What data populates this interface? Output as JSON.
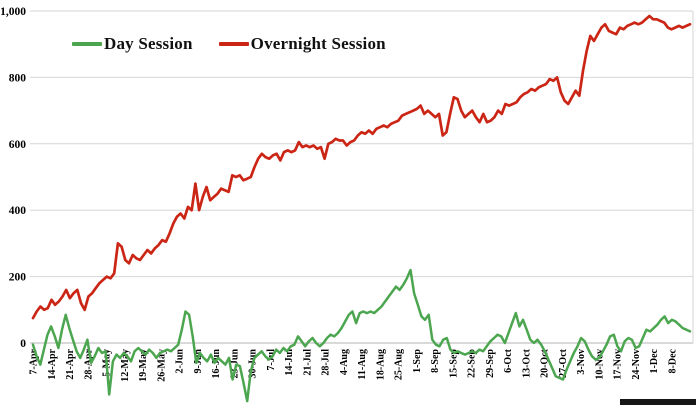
{
  "chart_data": {
    "type": "line",
    "title": "",
    "grid": true,
    "legend_position": "top-left-inside",
    "background": "#ffffff",
    "grid_color": "#d6d6d6",
    "zero_axis_color": "#b3b3b3",
    "label_color": "#000000",
    "legend": [
      {
        "label": "Day Session",
        "color": "#4ca64f"
      },
      {
        "label": "Overnight Session",
        "color": "#cb2615"
      }
    ],
    "y_axis": {
      "ticks": [
        0,
        200,
        400,
        600,
        800,
        1000
      ],
      "tick_labels": [
        "0",
        "200",
        "400",
        "600",
        "800",
        "1,000"
      ],
      "range_drawn": [
        -190,
        1000
      ]
    },
    "x_axis": {
      "tick_labels": [
        "7-Apr",
        "14-Apr",
        "21-Apr",
        "28-Apr",
        "5-May",
        "12-May",
        "19-May",
        "26-May",
        "2-Jun",
        "9-Jun",
        "16-Jun",
        "23-Jun",
        "30-Jun",
        "7-Jul",
        "14-Jul",
        "21-Jul",
        "28-Jul",
        "4-Aug",
        "11-Aug",
        "18-Aug",
        "25-Aug",
        "1-Sep",
        "8-Sep",
        "15-Sep",
        "22-Sep",
        "29-Sep",
        "6-Oct",
        "13-Oct",
        "20-Oct",
        "27-Oct",
        "3-Nov",
        "10-Nov",
        "17-Nov",
        "24-Nov",
        "1-Dec",
        "8-Dec"
      ]
    },
    "series": [
      {
        "name": "Overnight Session",
        "color": "#cb2615",
        "stroke_width": 2.7,
        "values": [
          75,
          95,
          110,
          100,
          105,
          130,
          115,
          125,
          140,
          160,
          135,
          150,
          160,
          120,
          100,
          140,
          150,
          165,
          180,
          190,
          200,
          195,
          210,
          300,
          290,
          250,
          240,
          265,
          255,
          250,
          265,
          280,
          270,
          285,
          295,
          310,
          305,
          330,
          360,
          380,
          390,
          375,
          410,
          400,
          480,
          400,
          440,
          470,
          430,
          440,
          450,
          465,
          460,
          455,
          505,
          500,
          505,
          490,
          495,
          500,
          530,
          555,
          570,
          560,
          555,
          565,
          570,
          550,
          575,
          580,
          575,
          580,
          605,
          590,
          595,
          590,
          595,
          585,
          590,
          555,
          600,
          605,
          615,
          610,
          610,
          595,
          605,
          610,
          625,
          635,
          630,
          640,
          630,
          645,
          650,
          655,
          650,
          660,
          665,
          670,
          685,
          690,
          695,
          700,
          705,
          715,
          690,
          700,
          690,
          680,
          690,
          625,
          635,
          690,
          740,
          735,
          700,
          680,
          690,
          700,
          680,
          665,
          690,
          665,
          670,
          680,
          700,
          690,
          720,
          715,
          720,
          725,
          740,
          750,
          755,
          765,
          760,
          770,
          775,
          780,
          795,
          790,
          800,
          755,
          730,
          720,
          740,
          760,
          745,
          820,
          880,
          925,
          910,
          930,
          950,
          960,
          940,
          935,
          930,
          950,
          945,
          955,
          960,
          965,
          960,
          965,
          975,
          985,
          975,
          975,
          970,
          965,
          950,
          945,
          950,
          955,
          950,
          955,
          960
        ]
      },
      {
        "name": "Day Session",
        "color": "#4ca64f",
        "stroke_width": 2.5,
        "values": [
          -5,
          -40,
          -65,
          -20,
          25,
          50,
          20,
          -15,
          40,
          85,
          45,
          10,
          -25,
          -45,
          -20,
          10,
          -60,
          -40,
          -15,
          -30,
          -25,
          -155,
          -55,
          -35,
          -45,
          -30,
          -40,
          -55,
          -25,
          -15,
          -25,
          -35,
          -20,
          -30,
          -45,
          -30,
          -25,
          -20,
          -25,
          -15,
          -5,
          40,
          95,
          85,
          20,
          -60,
          -30,
          -45,
          -55,
          -35,
          -60,
          -45,
          -55,
          -65,
          -45,
          -110,
          -65,
          -70,
          -120,
          -175,
          -85,
          -45,
          -35,
          -25,
          -40,
          -50,
          -40,
          -20,
          -30,
          -15,
          -25,
          -10,
          -5,
          20,
          5,
          -10,
          5,
          15,
          0,
          -10,
          0,
          15,
          25,
          20,
          30,
          45,
          65,
          85,
          95,
          60,
          90,
          95,
          90,
          95,
          90,
          100,
          110,
          125,
          140,
          155,
          170,
          160,
          175,
          195,
          220,
          150,
          115,
          80,
          70,
          85,
          10,
          -5,
          -10,
          10,
          15,
          -20,
          -30,
          -25,
          -30,
          -35,
          -30,
          -25,
          -30,
          -20,
          -25,
          -10,
          5,
          15,
          25,
          20,
          0,
          30,
          60,
          90,
          50,
          70,
          40,
          10,
          0,
          10,
          -5,
          -25,
          -50,
          -75,
          -100,
          -105,
          -110,
          -80,
          -55,
          -30,
          -10,
          15,
          5,
          -20,
          -40,
          -50,
          -45,
          -25,
          -5,
          20,
          25,
          -10,
          -25,
          5,
          15,
          10,
          -15,
          -10,
          15,
          40,
          35,
          45,
          55,
          70,
          80,
          60,
          70,
          65,
          55,
          45,
          40,
          35
        ]
      }
    ]
  }
}
